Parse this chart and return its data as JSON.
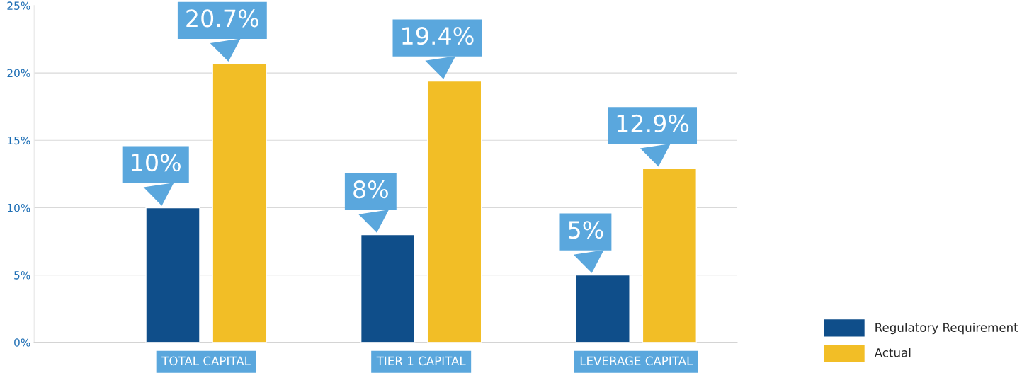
{
  "chart_data": {
    "type": "bar",
    "categories": [
      "TOTAL CAPITAL",
      "TIER 1 CAPITAL",
      "LEVERAGE CAPITAL"
    ],
    "series": [
      {
        "name": "Regulatory Requirement",
        "color": "#0f4e8a",
        "values": [
          10,
          8,
          5
        ],
        "value_labels": [
          "10%",
          "8%",
          "5%"
        ]
      },
      {
        "name": "Actual",
        "color": "#f2be26",
        "values": [
          20.7,
          19.4,
          12.9
        ],
        "value_labels": [
          "20.7%",
          "19.4%",
          "12.9%"
        ]
      }
    ],
    "ylim": [
      0,
      25
    ],
    "yticks": [
      {
        "value": 0,
        "label": "0%"
      },
      {
        "value": 5,
        "label": "5%"
      },
      {
        "value": 10,
        "label": "10%"
      },
      {
        "value": 15,
        "label": "15%"
      },
      {
        "value": 20,
        "label": "20%"
      },
      {
        "value": 25,
        "label": "25%"
      }
    ],
    "grid": "y",
    "legend": "bottom right"
  }
}
